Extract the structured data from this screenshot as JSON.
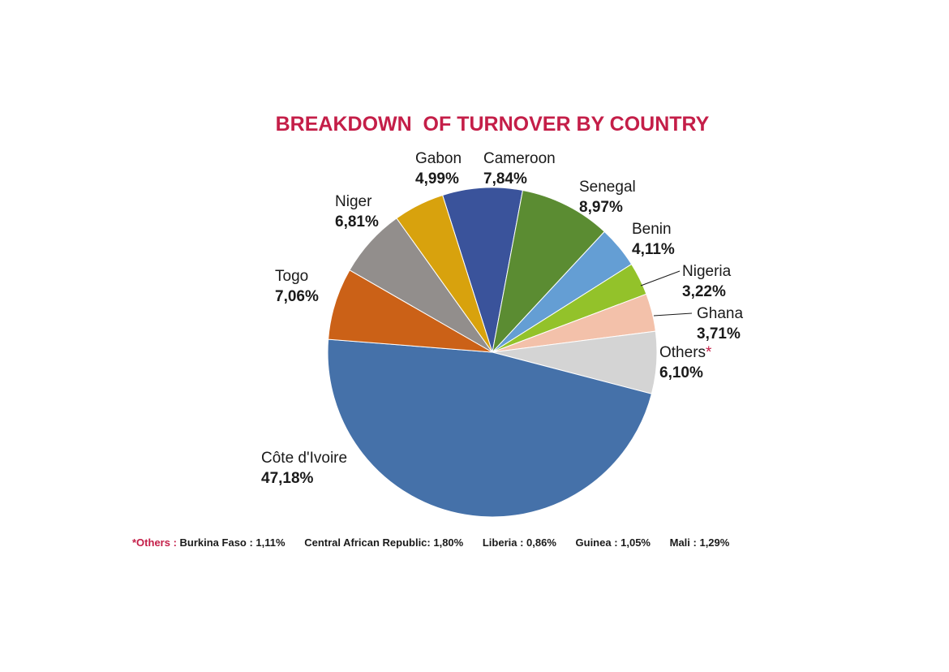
{
  "chart_data": {
    "type": "pie",
    "title": "BREAKDOWN  OF TURNOVER BY COUNTRY",
    "start_angle_deg": -17.6,
    "direction": "clockwise",
    "slices": [
      {
        "label": "Cameroon",
        "value_text": "7,84%",
        "value": 7.84,
        "color": "#3A539B"
      },
      {
        "label": "Senegal",
        "value_text": "8,97%",
        "value": 8.97,
        "color": "#5B8C32"
      },
      {
        "label": "Benin",
        "value_text": "4,11%",
        "value": 4.11,
        "color": "#649ED4"
      },
      {
        "label": "Nigeria",
        "value_text": "3,22%",
        "value": 3.22,
        "color": "#93C22A"
      },
      {
        "label": "Ghana",
        "value_text": "3,71%",
        "value": 3.71,
        "color": "#F3C1AA"
      },
      {
        "label": "Others",
        "label_mark": "*",
        "value_text": "6,10%",
        "value": 6.1,
        "color": "#D4D4D4"
      },
      {
        "label": "Côte d'Ivoire",
        "value_text": "47,18%",
        "value": 47.18,
        "color": "#4571A9"
      },
      {
        "label": "Togo",
        "value_text": "7,06%",
        "value": 7.06,
        "color": "#CB6117"
      },
      {
        "label": "Niger",
        "value_text": "6,81%",
        "value": 6.81,
        "color": "#928E8C"
      },
      {
        "label": "Gabon",
        "value_text": "4,99%",
        "value": 4.99,
        "color": "#D8A20D"
      }
    ]
  },
  "footnote": {
    "prefix": "*Others : ",
    "items": [
      "Burkina Faso : 1,11%",
      "Central African Republic: 1,80%",
      "Liberia : 0,86%",
      "Guinea : 1,05%",
      "Mali : 1,29%"
    ]
  },
  "colors": {
    "title": "#C41E48",
    "text": "#1a1a1a"
  }
}
